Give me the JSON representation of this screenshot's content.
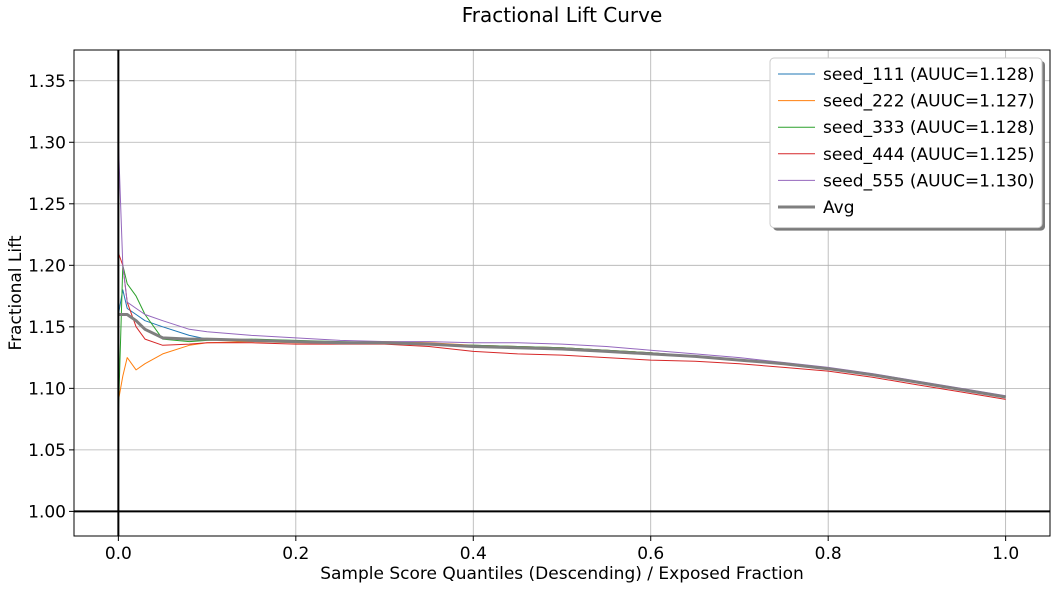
{
  "chart_data": {
    "type": "line",
    "title": "Fractional Lift Curve",
    "xlabel": "Sample Score Quantiles (Descending) / Exposed Fraction",
    "ylabel": "Fractional Lift",
    "xlim": [
      -0.05,
      1.05
    ],
    "ylim": [
      0.98,
      1.375
    ],
    "x_ticks": [
      0.0,
      0.2,
      0.4,
      0.6,
      0.8,
      1.0
    ],
    "x_tick_labels": [
      "0.0",
      "0.2",
      "0.4",
      "0.6",
      "0.8",
      "1.0"
    ],
    "y_ticks": [
      1.0,
      1.05,
      1.1,
      1.15,
      1.2,
      1.25,
      1.3,
      1.35
    ],
    "y_tick_labels": [
      "1.00",
      "1.05",
      "1.10",
      "1.15",
      "1.20",
      "1.25",
      "1.30",
      "1.35"
    ],
    "grid": true,
    "legend_position": "top-right",
    "reference_lines": {
      "hline_y": 1.0,
      "vline_x": 0.0
    },
    "series": [
      {
        "name": "seed_111 (AUUC=1.128)",
        "color": "#1f77b4",
        "x": [
          0.0,
          0.005,
          0.01,
          0.02,
          0.03,
          0.05,
          0.08,
          0.1,
          0.15,
          0.2,
          0.25,
          0.3,
          0.35,
          0.4,
          0.45,
          0.5,
          0.55,
          0.6,
          0.65,
          0.7,
          0.75,
          0.8,
          0.85,
          0.9,
          0.95,
          1.0
        ],
        "y": [
          1.16,
          1.18,
          1.165,
          1.16,
          1.155,
          1.15,
          1.143,
          1.14,
          1.139,
          1.138,
          1.137,
          1.137,
          1.136,
          1.135,
          1.134,
          1.133,
          1.131,
          1.129,
          1.126,
          1.123,
          1.12,
          1.116,
          1.111,
          1.105,
          1.099,
          1.093
        ]
      },
      {
        "name": "seed_222 (AUUC=1.127)",
        "color": "#ff7f0e",
        "x": [
          0.0,
          0.005,
          0.01,
          0.02,
          0.03,
          0.05,
          0.08,
          0.1,
          0.15,
          0.2,
          0.25,
          0.3,
          0.35,
          0.4,
          0.45,
          0.5,
          0.55,
          0.6,
          0.65,
          0.7,
          0.75,
          0.8,
          0.85,
          0.9,
          0.95,
          1.0
        ],
        "y": [
          1.09,
          1.11,
          1.125,
          1.115,
          1.12,
          1.128,
          1.135,
          1.137,
          1.138,
          1.137,
          1.137,
          1.138,
          1.137,
          1.135,
          1.134,
          1.133,
          1.131,
          1.129,
          1.126,
          1.123,
          1.12,
          1.116,
          1.111,
          1.105,
          1.099,
          1.093
        ]
      },
      {
        "name": "seed_333 (AUUC=1.128)",
        "color": "#2ca02c",
        "x": [
          0.0,
          0.005,
          0.01,
          0.02,
          0.03,
          0.05,
          0.08,
          0.1,
          0.15,
          0.2,
          0.25,
          0.3,
          0.35,
          0.4,
          0.45,
          0.5,
          0.55,
          0.6,
          0.65,
          0.7,
          0.75,
          0.8,
          0.85,
          0.9,
          0.95,
          1.0
        ],
        "y": [
          1.08,
          1.2,
          1.185,
          1.175,
          1.16,
          1.14,
          1.138,
          1.139,
          1.14,
          1.139,
          1.138,
          1.137,
          1.136,
          1.135,
          1.134,
          1.133,
          1.131,
          1.129,
          1.126,
          1.123,
          1.12,
          1.116,
          1.111,
          1.105,
          1.099,
          1.093
        ]
      },
      {
        "name": "seed_444 (AUUC=1.125)",
        "color": "#d62728",
        "x": [
          0.0,
          0.005,
          0.01,
          0.02,
          0.03,
          0.05,
          0.08,
          0.1,
          0.15,
          0.2,
          0.25,
          0.3,
          0.35,
          0.4,
          0.45,
          0.5,
          0.55,
          0.6,
          0.65,
          0.7,
          0.75,
          0.8,
          0.85,
          0.9,
          0.95,
          1.0
        ],
        "y": [
          1.21,
          1.2,
          1.17,
          1.15,
          1.14,
          1.135,
          1.136,
          1.137,
          1.137,
          1.136,
          1.136,
          1.136,
          1.134,
          1.13,
          1.128,
          1.127,
          1.125,
          1.123,
          1.122,
          1.12,
          1.117,
          1.114,
          1.109,
          1.103,
          1.097,
          1.091
        ]
      },
      {
        "name": "seed_555 (AUUC=1.130)",
        "color": "#9467bd",
        "x": [
          0.0,
          0.005,
          0.01,
          0.02,
          0.03,
          0.05,
          0.08,
          0.1,
          0.15,
          0.2,
          0.25,
          0.3,
          0.35,
          0.4,
          0.45,
          0.5,
          0.55,
          0.6,
          0.65,
          0.7,
          0.75,
          0.8,
          0.85,
          0.9,
          0.95,
          1.0
        ],
        "y": [
          1.3,
          1.2,
          1.17,
          1.165,
          1.16,
          1.155,
          1.148,
          1.146,
          1.143,
          1.141,
          1.139,
          1.138,
          1.138,
          1.137,
          1.137,
          1.136,
          1.134,
          1.131,
          1.128,
          1.125,
          1.121,
          1.117,
          1.112,
          1.106,
          1.1,
          1.094
        ]
      },
      {
        "name": "Avg",
        "color": "#7f7f7f",
        "width": 3,
        "x": [
          0.0,
          0.005,
          0.01,
          0.02,
          0.03,
          0.05,
          0.08,
          0.1,
          0.15,
          0.2,
          0.25,
          0.3,
          0.35,
          0.4,
          0.45,
          0.5,
          0.55,
          0.6,
          0.65,
          0.7,
          0.75,
          0.8,
          0.85,
          0.9,
          0.95,
          1.0
        ],
        "y": [
          1.16,
          1.16,
          1.16,
          1.155,
          1.148,
          1.141,
          1.14,
          1.14,
          1.139,
          1.138,
          1.137,
          1.137,
          1.136,
          1.134,
          1.133,
          1.132,
          1.13,
          1.128,
          1.126,
          1.123,
          1.12,
          1.116,
          1.111,
          1.105,
          1.099,
          1.093
        ]
      }
    ]
  }
}
